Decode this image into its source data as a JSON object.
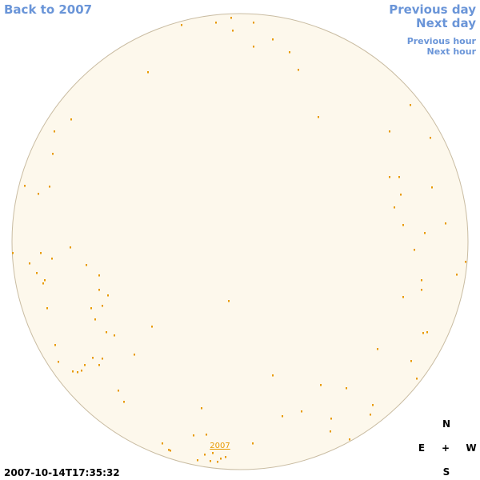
{
  "navigation": {
    "back": "Back to 2007",
    "previous_day": "Previous day",
    "next_day": "Next day",
    "previous_hour": "Previous hour",
    "next_hour": "Next hour"
  },
  "sky_map": {
    "label": "2007"
  },
  "compass": {
    "north": "N",
    "east": "E",
    "west": "W",
    "south": "S",
    "center": "+"
  },
  "timestamp": "2007-10-14T17:35:32"
}
